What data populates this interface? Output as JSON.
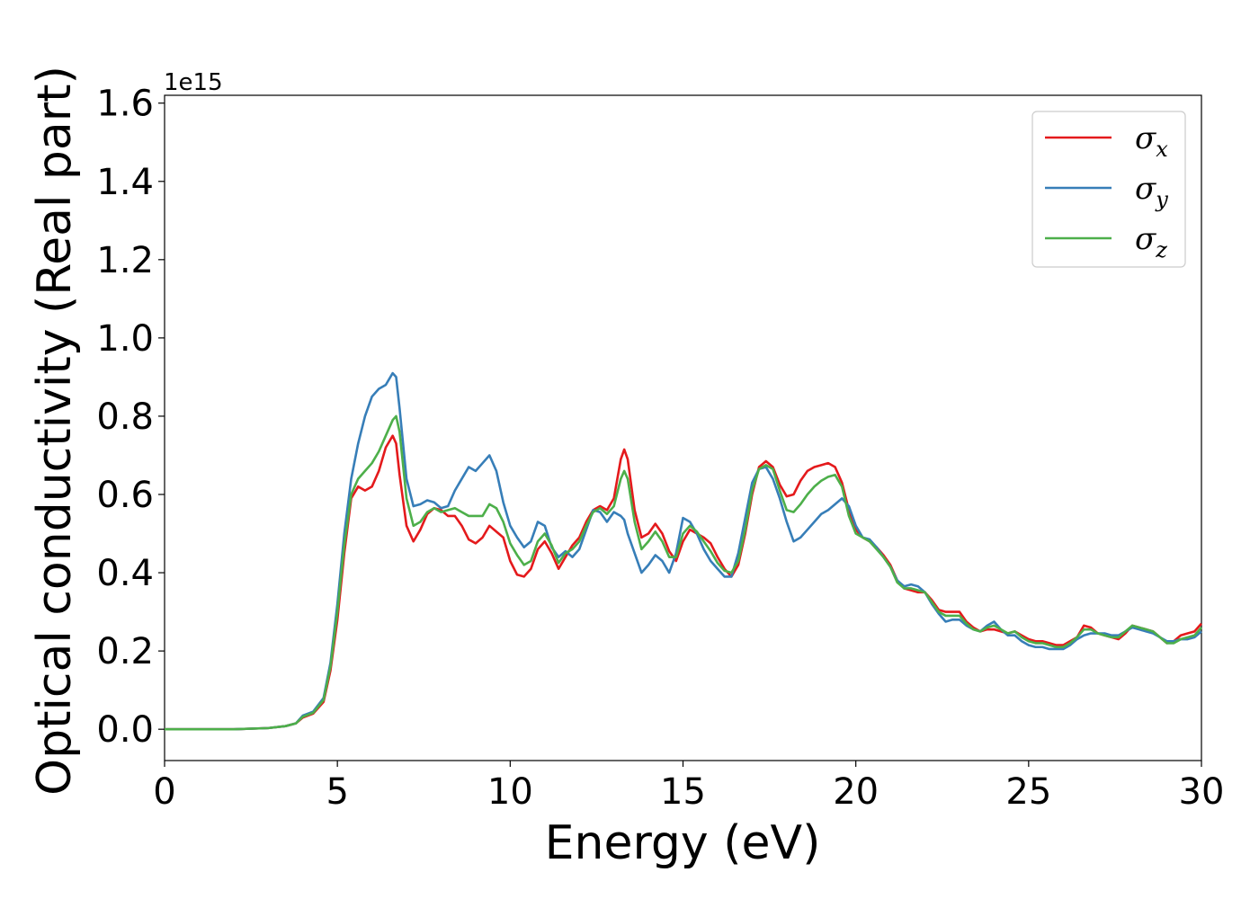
{
  "chart_data": {
    "type": "line",
    "xlabel": "Energy (eV)",
    "ylabel": "Optical conductivity (Real part)",
    "y_offset_label": "1e15",
    "xlim": [
      0,
      30
    ],
    "ylim": [
      -0.08,
      1.62
    ],
    "xticks": [
      0,
      5,
      10,
      15,
      20,
      25,
      30
    ],
    "yticks": [
      0.0,
      0.2,
      0.4,
      0.6,
      0.8,
      1.0,
      1.2,
      1.4,
      1.6
    ],
    "xtick_labels": [
      "0",
      "5",
      "10",
      "15",
      "20",
      "25",
      "30"
    ],
    "ytick_labels": [
      "0.0",
      "0.2",
      "0.4",
      "0.6",
      "0.8",
      "1.0",
      "1.2",
      "1.4",
      "1.6"
    ],
    "grid": false,
    "legend_position": "top-right",
    "series": [
      {
        "name": "σ",
        "subscript": "x",
        "color": "#e41a1c",
        "x": [
          0,
          1,
          2,
          3,
          3.5,
          3.8,
          4.0,
          4.3,
          4.6,
          4.8,
          5.0,
          5.2,
          5.4,
          5.6,
          5.8,
          6.0,
          6.2,
          6.4,
          6.6,
          6.7,
          6.8,
          7.0,
          7.2,
          7.4,
          7.6,
          7.8,
          8.0,
          8.2,
          8.4,
          8.6,
          8.8,
          9.0,
          9.2,
          9.4,
          9.6,
          9.8,
          10.0,
          10.2,
          10.4,
          10.6,
          10.8,
          11.0,
          11.2,
          11.4,
          11.6,
          11.8,
          12.0,
          12.2,
          12.4,
          12.6,
          12.8,
          13.0,
          13.2,
          13.3,
          13.4,
          13.6,
          13.8,
          14.0,
          14.2,
          14.4,
          14.6,
          14.8,
          15.0,
          15.2,
          15.4,
          15.6,
          15.8,
          16.0,
          16.2,
          16.4,
          16.6,
          16.8,
          17.0,
          17.2,
          17.4,
          17.6,
          17.8,
          18.0,
          18.2,
          18.4,
          18.6,
          18.8,
          19.0,
          19.2,
          19.4,
          19.6,
          19.8,
          20.0,
          20.2,
          20.4,
          20.6,
          20.8,
          21.0,
          21.2,
          21.4,
          21.6,
          21.8,
          22.0,
          22.2,
          22.4,
          22.6,
          22.8,
          23.0,
          23.2,
          23.4,
          23.6,
          23.8,
          24.0,
          24.2,
          24.4,
          24.6,
          24.8,
          25.0,
          25.2,
          25.4,
          25.6,
          25.8,
          26.0,
          26.2,
          26.4,
          26.6,
          26.8,
          27.0,
          27.2,
          27.4,
          27.6,
          27.8,
          28.0,
          28.2,
          28.4,
          28.6,
          28.8,
          29.0,
          29.2,
          29.4,
          29.6,
          29.8,
          30.0
        ],
        "y": [
          0,
          0,
          0,
          0.003,
          0.008,
          0.015,
          0.03,
          0.04,
          0.07,
          0.15,
          0.28,
          0.45,
          0.59,
          0.62,
          0.61,
          0.62,
          0.66,
          0.72,
          0.75,
          0.73,
          0.65,
          0.52,
          0.48,
          0.51,
          0.55,
          0.565,
          0.56,
          0.545,
          0.545,
          0.52,
          0.485,
          0.475,
          0.49,
          0.52,
          0.505,
          0.49,
          0.43,
          0.395,
          0.39,
          0.41,
          0.46,
          0.48,
          0.45,
          0.41,
          0.44,
          0.47,
          0.49,
          0.53,
          0.56,
          0.57,
          0.56,
          0.59,
          0.69,
          0.715,
          0.69,
          0.56,
          0.49,
          0.5,
          0.525,
          0.5,
          0.455,
          0.43,
          0.48,
          0.51,
          0.5,
          0.49,
          0.475,
          0.44,
          0.41,
          0.39,
          0.42,
          0.5,
          0.6,
          0.67,
          0.685,
          0.67,
          0.625,
          0.595,
          0.6,
          0.635,
          0.66,
          0.67,
          0.675,
          0.68,
          0.67,
          0.63,
          0.56,
          0.51,
          0.49,
          0.48,
          0.465,
          0.445,
          0.42,
          0.38,
          0.36,
          0.355,
          0.35,
          0.35,
          0.33,
          0.305,
          0.3,
          0.3,
          0.3,
          0.275,
          0.26,
          0.25,
          0.255,
          0.255,
          0.25,
          0.245,
          0.25,
          0.24,
          0.23,
          0.225,
          0.225,
          0.22,
          0.215,
          0.215,
          0.225,
          0.235,
          0.265,
          0.26,
          0.245,
          0.24,
          0.235,
          0.23,
          0.245,
          0.265,
          0.26,
          0.255,
          0.25,
          0.235,
          0.22,
          0.225,
          0.24,
          0.245,
          0.25,
          0.27
        ]
      },
      {
        "name": "σ",
        "subscript": "y",
        "color": "#377eb8",
        "x": [
          0,
          1,
          2,
          3,
          3.5,
          3.8,
          4.0,
          4.3,
          4.6,
          4.8,
          5.0,
          5.2,
          5.4,
          5.6,
          5.8,
          6.0,
          6.2,
          6.4,
          6.6,
          6.7,
          6.8,
          7.0,
          7.2,
          7.4,
          7.6,
          7.8,
          8.0,
          8.2,
          8.4,
          8.6,
          8.8,
          9.0,
          9.2,
          9.4,
          9.6,
          9.8,
          10.0,
          10.2,
          10.4,
          10.6,
          10.8,
          11.0,
          11.2,
          11.4,
          11.6,
          11.8,
          12.0,
          12.2,
          12.4,
          12.6,
          12.8,
          13.0,
          13.2,
          13.3,
          13.4,
          13.6,
          13.8,
          14.0,
          14.2,
          14.4,
          14.6,
          14.8,
          15.0,
          15.2,
          15.4,
          15.6,
          15.8,
          16.0,
          16.2,
          16.4,
          16.6,
          16.8,
          17.0,
          17.2,
          17.4,
          17.6,
          17.8,
          18.0,
          18.2,
          18.4,
          18.6,
          18.8,
          19.0,
          19.2,
          19.4,
          19.6,
          19.8,
          20.0,
          20.2,
          20.4,
          20.6,
          20.8,
          21.0,
          21.2,
          21.4,
          21.6,
          21.8,
          22.0,
          22.2,
          22.4,
          22.6,
          22.8,
          23.0,
          23.2,
          23.4,
          23.6,
          23.8,
          24.0,
          24.2,
          24.4,
          24.6,
          24.8,
          25.0,
          25.2,
          25.4,
          25.6,
          25.8,
          26.0,
          26.2,
          26.4,
          26.6,
          26.8,
          27.0,
          27.2,
          27.4,
          27.6,
          27.8,
          28.0,
          28.2,
          28.4,
          28.6,
          28.8,
          29.0,
          29.2,
          29.4,
          29.6,
          29.8,
          30.0
        ],
        "y": [
          0,
          0,
          0,
          0.003,
          0.008,
          0.015,
          0.035,
          0.045,
          0.08,
          0.17,
          0.32,
          0.5,
          0.64,
          0.73,
          0.8,
          0.85,
          0.87,
          0.88,
          0.91,
          0.9,
          0.82,
          0.64,
          0.57,
          0.575,
          0.585,
          0.58,
          0.565,
          0.57,
          0.61,
          0.64,
          0.67,
          0.66,
          0.68,
          0.7,
          0.66,
          0.58,
          0.52,
          0.49,
          0.465,
          0.48,
          0.53,
          0.52,
          0.465,
          0.44,
          0.455,
          0.44,
          0.46,
          0.51,
          0.56,
          0.555,
          0.53,
          0.555,
          0.545,
          0.535,
          0.5,
          0.45,
          0.4,
          0.42,
          0.445,
          0.43,
          0.4,
          0.45,
          0.54,
          0.53,
          0.5,
          0.46,
          0.43,
          0.41,
          0.39,
          0.39,
          0.45,
          0.54,
          0.63,
          0.665,
          0.67,
          0.64,
          0.59,
          0.53,
          0.48,
          0.49,
          0.51,
          0.53,
          0.55,
          0.56,
          0.575,
          0.59,
          0.57,
          0.52,
          0.49,
          0.485,
          0.465,
          0.44,
          0.415,
          0.38,
          0.365,
          0.37,
          0.365,
          0.35,
          0.32,
          0.295,
          0.275,
          0.28,
          0.28,
          0.265,
          0.255,
          0.25,
          0.265,
          0.275,
          0.255,
          0.24,
          0.24,
          0.225,
          0.215,
          0.21,
          0.21,
          0.205,
          0.205,
          0.205,
          0.215,
          0.23,
          0.24,
          0.245,
          0.245,
          0.245,
          0.24,
          0.24,
          0.25,
          0.26,
          0.255,
          0.25,
          0.245,
          0.235,
          0.225,
          0.225,
          0.23,
          0.23,
          0.235,
          0.25
        ]
      },
      {
        "name": "σ",
        "subscript": "z",
        "color": "#4daf4a",
        "x": [
          0,
          1,
          2,
          3,
          3.5,
          3.8,
          4.0,
          4.3,
          4.6,
          4.8,
          5.0,
          5.2,
          5.4,
          5.6,
          5.8,
          6.0,
          6.2,
          6.4,
          6.6,
          6.7,
          6.8,
          7.0,
          7.2,
          7.4,
          7.6,
          7.8,
          8.0,
          8.2,
          8.4,
          8.6,
          8.8,
          9.0,
          9.2,
          9.4,
          9.6,
          9.8,
          10.0,
          10.2,
          10.4,
          10.6,
          10.8,
          11.0,
          11.2,
          11.4,
          11.6,
          11.8,
          12.0,
          12.2,
          12.4,
          12.6,
          12.8,
          13.0,
          13.2,
          13.3,
          13.4,
          13.6,
          13.8,
          14.0,
          14.2,
          14.4,
          14.6,
          14.8,
          15.0,
          15.2,
          15.4,
          15.6,
          15.8,
          16.0,
          16.2,
          16.4,
          16.6,
          16.8,
          17.0,
          17.2,
          17.4,
          17.6,
          17.8,
          18.0,
          18.2,
          18.4,
          18.6,
          18.8,
          19.0,
          19.2,
          19.4,
          19.6,
          19.8,
          20.0,
          20.2,
          20.4,
          20.6,
          20.8,
          21.0,
          21.2,
          21.4,
          21.6,
          21.8,
          22.0,
          22.2,
          22.4,
          22.6,
          22.8,
          23.0,
          23.2,
          23.4,
          23.6,
          23.8,
          24.0,
          24.2,
          24.4,
          24.6,
          24.8,
          25.0,
          25.2,
          25.4,
          25.6,
          25.8,
          26.0,
          26.2,
          26.4,
          26.6,
          26.8,
          27.0,
          27.2,
          27.4,
          27.6,
          27.8,
          28.0,
          28.2,
          28.4,
          28.6,
          28.8,
          29.0,
          29.2,
          29.4,
          29.6,
          29.8,
          30.0
        ],
        "y": [
          0,
          0,
          0,
          0.003,
          0.008,
          0.015,
          0.032,
          0.042,
          0.075,
          0.16,
          0.3,
          0.47,
          0.6,
          0.64,
          0.66,
          0.68,
          0.71,
          0.75,
          0.79,
          0.8,
          0.76,
          0.59,
          0.52,
          0.53,
          0.555,
          0.565,
          0.555,
          0.56,
          0.565,
          0.555,
          0.545,
          0.545,
          0.545,
          0.575,
          0.565,
          0.53,
          0.475,
          0.445,
          0.42,
          0.43,
          0.48,
          0.5,
          0.47,
          0.425,
          0.45,
          0.46,
          0.48,
          0.52,
          0.555,
          0.565,
          0.55,
          0.57,
          0.64,
          0.66,
          0.64,
          0.53,
          0.46,
          0.48,
          0.505,
          0.48,
          0.44,
          0.44,
          0.5,
          0.52,
          0.505,
          0.48,
          0.455,
          0.425,
          0.405,
          0.4,
          0.43,
          0.51,
          0.61,
          0.665,
          0.675,
          0.665,
          0.61,
          0.56,
          0.555,
          0.575,
          0.6,
          0.62,
          0.635,
          0.645,
          0.65,
          0.62,
          0.545,
          0.5,
          0.49,
          0.48,
          0.46,
          0.44,
          0.415,
          0.375,
          0.36,
          0.36,
          0.355,
          0.35,
          0.325,
          0.3,
          0.29,
          0.29,
          0.29,
          0.27,
          0.255,
          0.25,
          0.26,
          0.265,
          0.255,
          0.245,
          0.25,
          0.235,
          0.225,
          0.22,
          0.22,
          0.215,
          0.21,
          0.21,
          0.22,
          0.235,
          0.255,
          0.255,
          0.245,
          0.24,
          0.235,
          0.235,
          0.25,
          0.265,
          0.26,
          0.255,
          0.25,
          0.235,
          0.22,
          0.22,
          0.23,
          0.235,
          0.24,
          0.26
        ]
      }
    ]
  }
}
